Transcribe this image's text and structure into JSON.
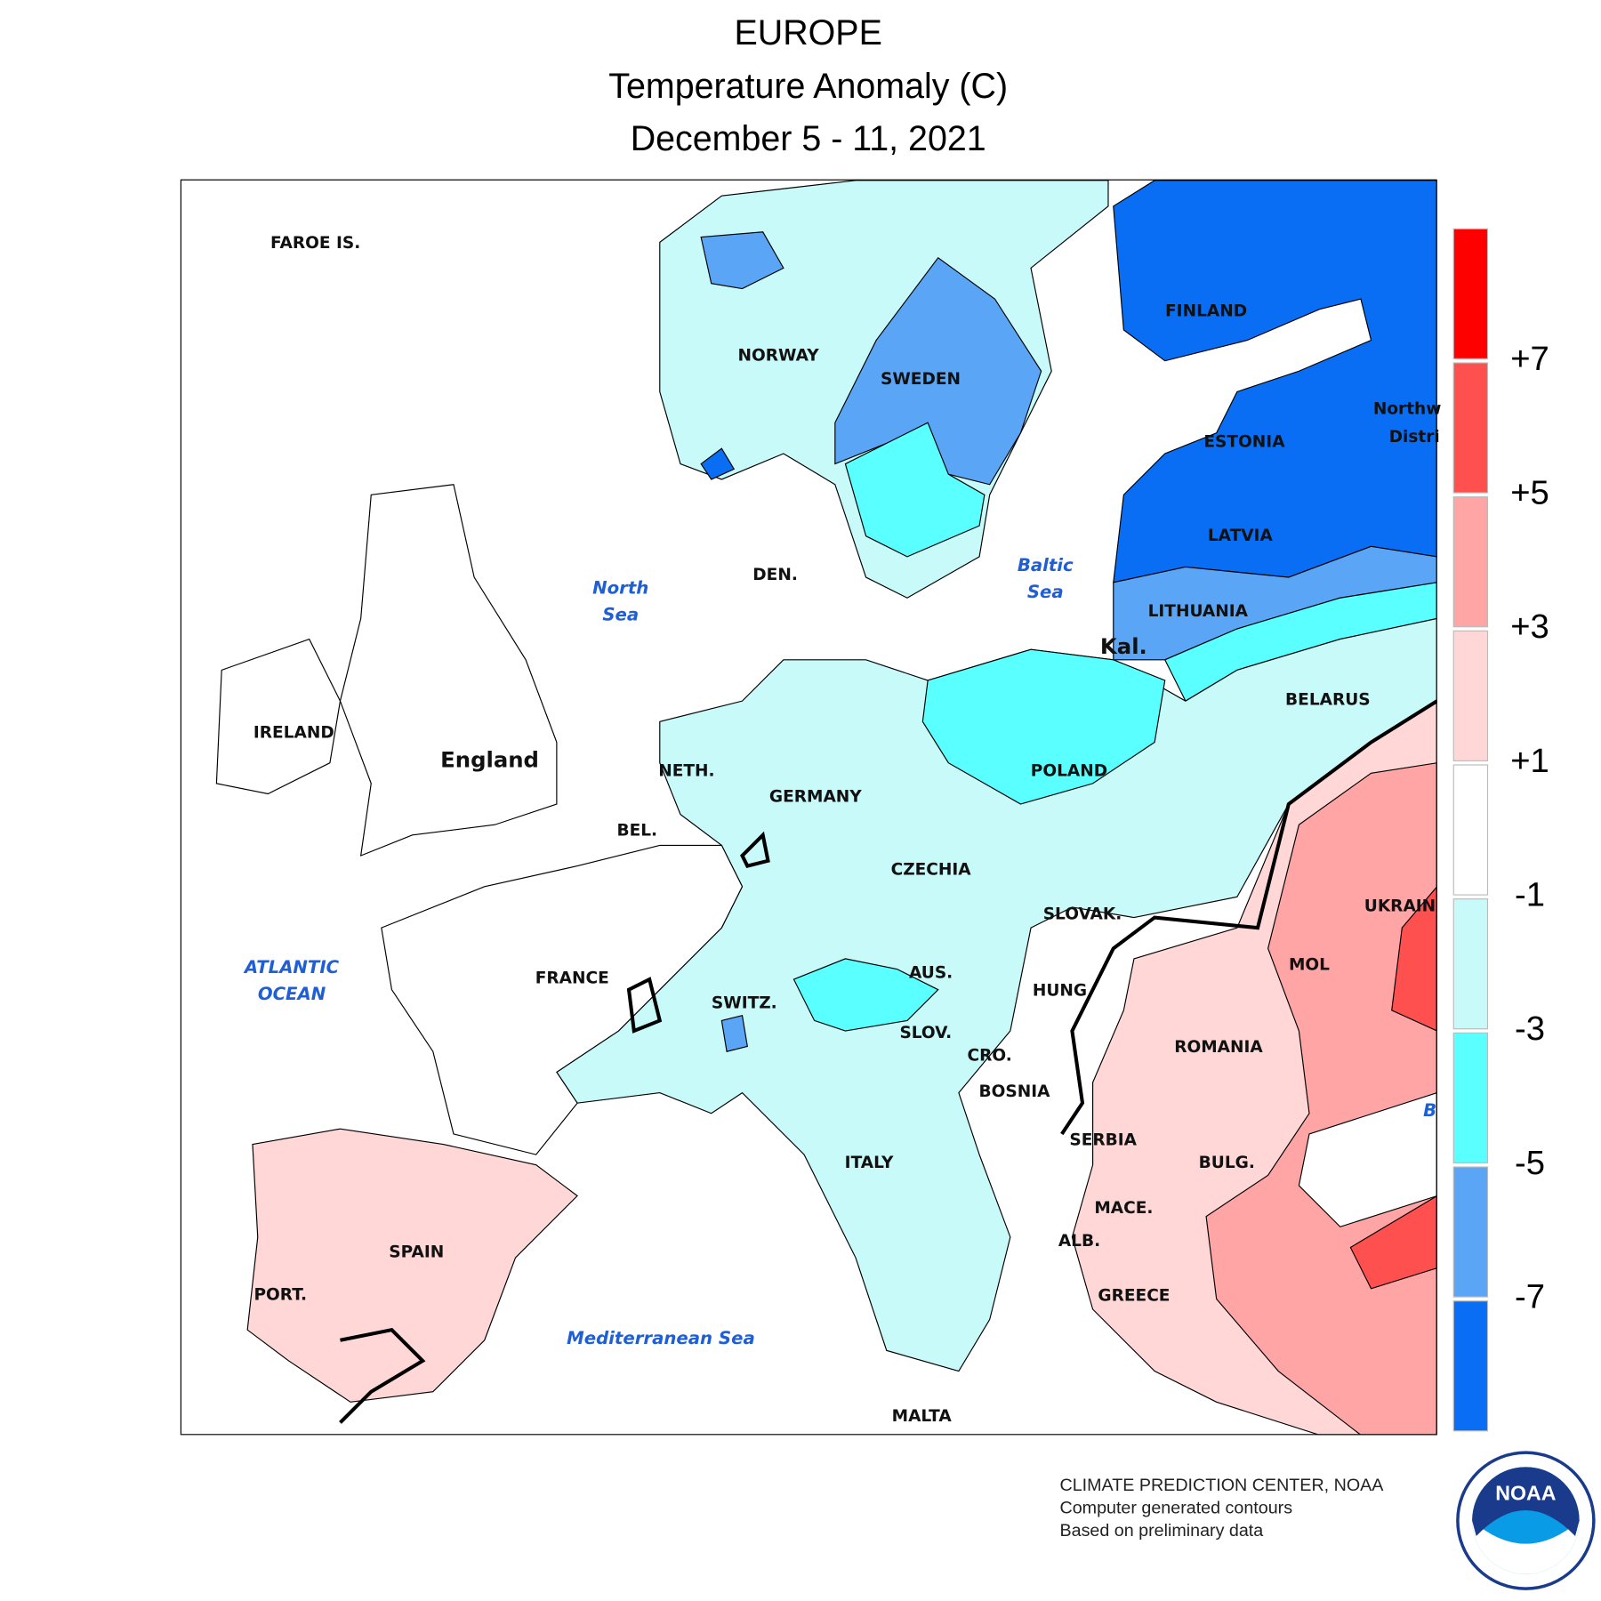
{
  "header": {
    "title": "EUROPE",
    "subtitle": "Temperature Anomaly (C)",
    "dates": "December 5 - 11, 2021"
  },
  "map": {
    "labels": [
      "FAROE IS.",
      "NORWAY",
      "SWEDEN",
      "FINLAND",
      "ESTONIA",
      "LATVIA",
      "LITHUANIA",
      "Kal.",
      "BELARUS",
      "Northw",
      "Distri",
      "DEN.",
      "IRELAND",
      "England",
      "NETH.",
      "GERMANY",
      "POLAND",
      "BEL.",
      "CZECHIA",
      "SLOVAK.",
      "UKRAIN",
      "FRANCE",
      "AUS.",
      "HUNG",
      "MOL",
      "SWITZ.",
      "SLOV.",
      "ROMANIA",
      "CRO.",
      "BOSNIA",
      "SERBIA",
      "ITALY",
      "BULG.",
      "MACE.",
      "ALB.",
      "SPAIN",
      "PORT.",
      "GREECE",
      "MALTA"
    ],
    "seas": [
      "North",
      "Sea",
      "Baltic",
      "Sea",
      "ATLANTIC",
      "OCEAN",
      "Mediterranean Sea",
      "B"
    ]
  },
  "legend": {
    "colors": [
      "#ff0000",
      "#ff5050",
      "#ffa5a5",
      "#ffd7d7",
      "#ffffff",
      "#c8fafa",
      "#5affff",
      "#5aa5f5",
      "#0a6ef5"
    ],
    "labels": [
      "+7",
      "+5",
      "+3",
      "+1",
      "-1",
      "-3",
      "-5",
      "-7"
    ]
  },
  "footer": {
    "lines": [
      "CLIMATE PREDICTION CENTER, NOAA",
      "Computer generated contours",
      "Based on preliminary data"
    ],
    "logo": "NOAA"
  }
}
